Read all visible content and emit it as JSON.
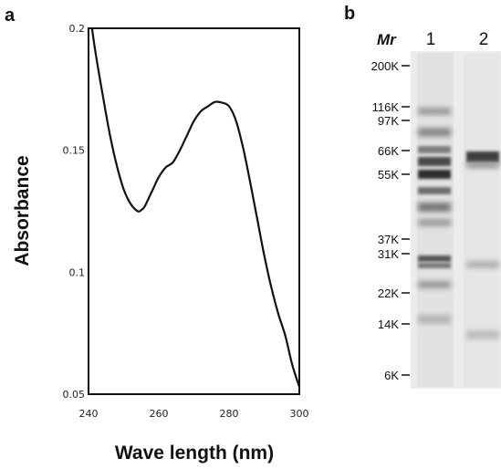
{
  "panel_a": {
    "letter": "a",
    "chart_data": {
      "type": "line",
      "xlabel": "Wave length (nm)",
      "ylabel": "Absorbance",
      "xlim": [
        240,
        300
      ],
      "ylim": [
        0.05,
        0.2
      ],
      "x_ticks": [
        240,
        260,
        280,
        300
      ],
      "x_tick_labels": [
        "240",
        "260",
        "280",
        "300"
      ],
      "y_ticks": [
        0.05,
        0.1,
        0.15,
        0.2
      ],
      "y_tick_labels": [
        "0.05",
        "0.1",
        "0.15",
        "0.2"
      ],
      "grid": false,
      "series": [
        {
          "x": [
            241,
            242,
            244,
            246,
            248,
            250,
            252,
            254,
            255,
            256,
            258,
            260,
            262,
            264,
            266,
            268,
            270,
            272,
            274,
            276,
            278,
            280,
            282,
            284,
            286,
            288,
            290,
            292,
            294,
            296,
            298,
            300
          ],
          "y": [
            0.2,
            0.19,
            0.173,
            0.157,
            0.144,
            0.134,
            0.128,
            0.125,
            0.1255,
            0.127,
            0.133,
            0.139,
            0.143,
            0.145,
            0.15,
            0.156,
            0.162,
            0.166,
            0.168,
            0.1698,
            0.1695,
            0.168,
            0.162,
            0.151,
            0.137,
            0.122,
            0.107,
            0.094,
            0.083,
            0.074,
            0.062,
            0.053
          ]
        }
      ]
    }
  },
  "panel_b": {
    "letter": "b",
    "mr_label": "Mr",
    "lanes": [
      "1",
      "2"
    ],
    "markers": [
      "200K",
      "116K",
      "97K",
      "66K",
      "55K",
      "37K",
      "31K",
      "22K",
      "14K",
      "6K"
    ]
  }
}
